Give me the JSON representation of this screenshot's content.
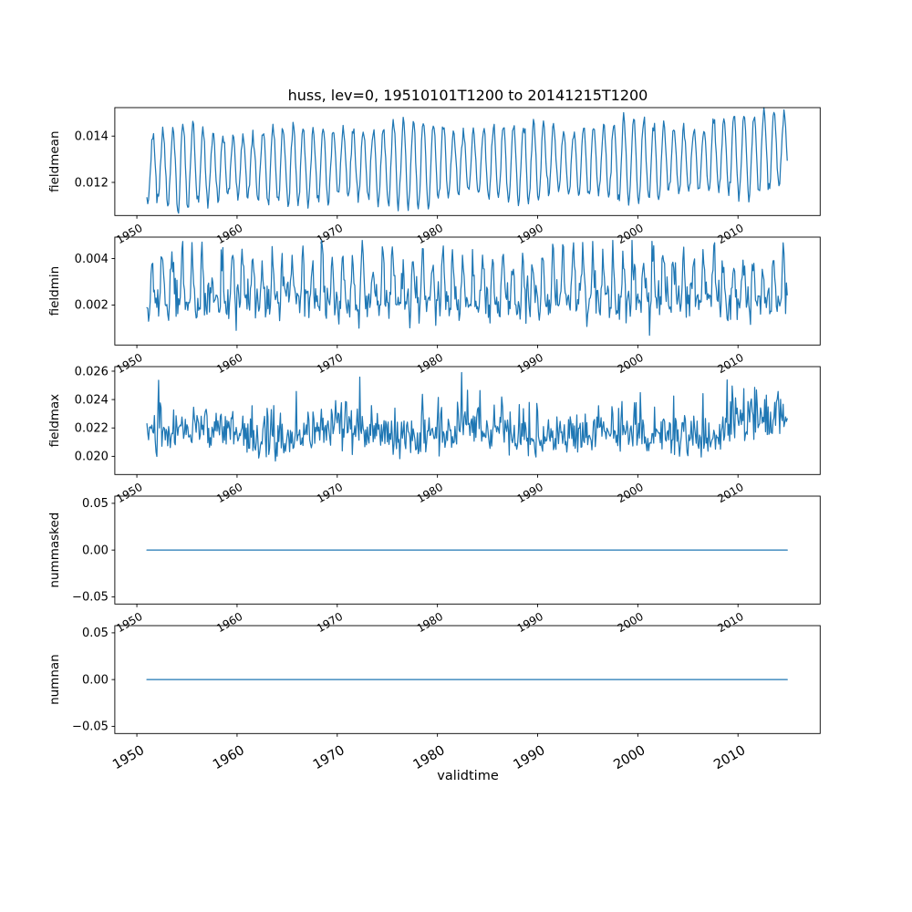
{
  "figure": {
    "title": "huss, lev=0, 19510101T1200 to 20141215T1200",
    "xlabel": "validtime",
    "background": "#ffffff",
    "line_color": "#1f77b4",
    "frame_color": "#000000"
  },
  "x_axis": {
    "xlim": [
      1947.8,
      2018.2
    ],
    "ticks": [
      1950,
      1960,
      1970,
      1980,
      1990,
      2000,
      2010
    ],
    "tick_labels": [
      "1950",
      "1960",
      "1970",
      "1980",
      "1990",
      "2000",
      "2010"
    ],
    "data_start": 1951.0,
    "data_end": 2014.9583,
    "points_per_year": 12
  },
  "chart_data": [
    {
      "type": "line",
      "ylabel": "fieldmean",
      "yticks": [
        0.012,
        0.014
      ],
      "ytick_labels": [
        "0.012",
        "0.014"
      ],
      "ylim": [
        0.01057,
        0.01523
      ],
      "series": {
        "name": "fieldmean",
        "kind": "seasonal",
        "params": {
          "mean": 0.01265,
          "trend_total": 0.0004,
          "late_rise": 0.0004,
          "amp": 0.00155,
          "amp_wobble": 0.0002,
          "noise_sd": 0.00015,
          "phase": 0.35,
          "approx_min": 0.0108,
          "approx_max": 0.015
        }
      }
    },
    {
      "type": "line",
      "ylabel": "fieldmin",
      "yticks": [
        0.002,
        0.004
      ],
      "ytick_labels": [
        "0.002",
        "0.004"
      ],
      "ylim": [
        0.00028,
        0.00492
      ],
      "series": {
        "name": "fieldmin",
        "kind": "seasonal2",
        "params": {
          "mean": 0.00265,
          "amp1": 0.0009,
          "amp2": 0.0005,
          "noise_sd": 0.00045,
          "spike_p": 0.004,
          "spike": 0.0009,
          "clamp_min": 0.0006,
          "clamp_max": 0.00478,
          "approx_min": 0.0006,
          "approx_max": 0.0047
        }
      }
    },
    {
      "type": "line",
      "ylabel": "fieldmax",
      "yticks": [
        0.02,
        0.022,
        0.024,
        0.026
      ],
      "ytick_labels": [
        "0.020",
        "0.022",
        "0.024",
        "0.026"
      ],
      "ylim": [
        0.01872,
        0.02632
      ],
      "series": {
        "name": "fieldmax",
        "kind": "noisy_spiky",
        "params": {
          "base": 0.02075,
          "slow_amp": 0.0003,
          "late_rise": 0.0006,
          "half_noise": 0.0011,
          "noise_sd": 0.00045,
          "spike_p": 0.045,
          "spike_min": 0.0012,
          "spike_extra": 0.0022,
          "clamp_min": 0.019,
          "clamp_max": 0.0259,
          "approx_min": 0.0193,
          "approx_max": 0.0258
        }
      }
    },
    {
      "type": "line",
      "ylabel": "nummasked",
      "yticks": [
        -0.05,
        0.0,
        0.05
      ],
      "ytick_labels": [
        "−0.05",
        "0.00",
        "0.05"
      ],
      "ylim": [
        -0.0577,
        0.0577
      ],
      "series": {
        "name": "nummasked",
        "kind": "constant",
        "params": {
          "value": 0.0
        }
      }
    },
    {
      "type": "line",
      "ylabel": "numnan",
      "yticks": [
        -0.05,
        0.0,
        0.05
      ],
      "ytick_labels": [
        "−0.05",
        "0.00",
        "0.05"
      ],
      "ylim": [
        -0.0577,
        0.0577
      ],
      "series": {
        "name": "numnan",
        "kind": "constant",
        "params": {
          "value": 0.0
        }
      }
    }
  ]
}
